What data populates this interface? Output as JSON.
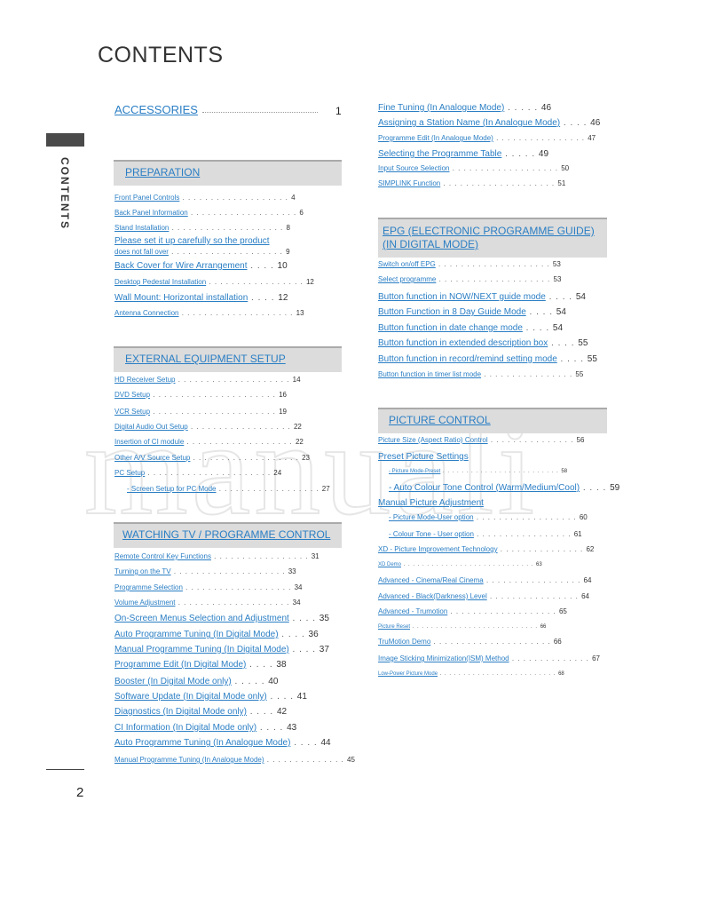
{
  "title": "CONTENTS",
  "side_label": "CONTENTS",
  "page_number": "2",
  "watermark": "manuali",
  "accessories": {
    "label": "ACCESSORIES",
    "page": "1"
  },
  "sections": [
    {
      "title": "PREPARATION",
      "items": [
        {
          "text": "Front Panel Controls",
          "page": "4"
        },
        {
          "text": "Back Panel Information",
          "page": "6"
        },
        {
          "text": "Stand Installation",
          "page": "8"
        },
        {
          "text": "Please set it up carefully so the product",
          "page": ""
        },
        {
          "text": "does not fall over",
          "page": "9"
        },
        {
          "text": "Back Cover for Wire Arrangement",
          "page": "10"
        },
        {
          "text": "Desktop Pedestal Installation",
          "page": "12"
        },
        {
          "text": "Wall Mount: Horizontal installation",
          "page": "12"
        },
        {
          "text": "Antenna Connection",
          "page": "13"
        }
      ]
    },
    {
      "title": "EXTERNAL EQUIPMENT SETUP",
      "items": [
        {
          "text": "HD Receiver Setup",
          "page": "14"
        },
        {
          "text": "DVD Setup",
          "page": "16"
        },
        {
          "text": "VCR Setup",
          "page": "19"
        },
        {
          "text": "Digital Audio Out Setup",
          "page": "22"
        },
        {
          "text": "Insertion of CI module",
          "page": "22"
        },
        {
          "text": "Other A/V Source Setup",
          "page": "23"
        },
        {
          "text": "PC Setup",
          "page": "24"
        },
        {
          "text": "- Screen Setup for PC Mode",
          "page": "27"
        }
      ]
    },
    {
      "title": "WATCHING TV / PROGRAMME CONTROL",
      "items": [
        {
          "text": "Remote Control Key Functions",
          "page": "31"
        },
        {
          "text": "Turning on the TV",
          "page": "33"
        },
        {
          "text": "Programme Selection",
          "page": "34"
        },
        {
          "text": "Volume Adjustment",
          "page": "34"
        },
        {
          "text": "On-Screen Menus Selection and Adjustment",
          "page": "35"
        },
        {
          "text": "Auto Programme Tuning (In Digital Mode)",
          "page": "36"
        },
        {
          "text": "Manual Programme Tuning (In Digital Mode)",
          "page": "37"
        },
        {
          "text": "Programme Edit (In Digital Mode)",
          "page": "38"
        },
        {
          "text": "Booster (In Digital Mode only)",
          "page": "40"
        },
        {
          "text": "Software Update (In Digital Mode only)",
          "page": "41"
        },
        {
          "text": "Diagnostics (In Digital Mode only)",
          "page": "42"
        },
        {
          "text": "CI Information (In Digital Mode only)",
          "page": "43"
        },
        {
          "text": "Auto Programme Tuning (In Analogue Mode)",
          "page": "44"
        },
        {
          "text": "Manual Programme Tuning (In Analogue Mode)",
          "page": "45"
        }
      ]
    },
    {
      "title": "",
      "items": [
        {
          "text": "Fine Tuning (In Analogue Mode)",
          "page": "46"
        },
        {
          "text": "Assigning a Station Name (In Analogue Mode)",
          "page": "46"
        },
        {
          "text": "Programme Edit (In Analogue Mode)",
          "page": "47"
        },
        {
          "text": "Selecting the Programme Table",
          "page": "49"
        },
        {
          "text": "Input Source Selection",
          "page": "50"
        },
        {
          "text": "SIMPLINK Function",
          "page": "51"
        }
      ]
    },
    {
      "title": "EPG (ELECTRONIC PROGRAMME GUIDE)",
      "title2": "(IN DIGITAL MODE)",
      "items": [
        {
          "text": "Switch on/off EPG",
          "page": "53"
        },
        {
          "text": "Select programme",
          "page": "53"
        },
        {
          "text": "Button function in NOW/NEXT guide mode",
          "page": "54"
        },
        {
          "text": "Button Function in 8 Day Guide Mode",
          "page": "54"
        },
        {
          "text": "Button function in date change mode",
          "page": "54"
        },
        {
          "text": "Button function in extended description box",
          "page": "55"
        },
        {
          "text": "Button function in record/remind setting mode",
          "page": "55"
        },
        {
          "text": "Button function in timer list mode",
          "page": "55"
        }
      ]
    },
    {
      "title": "PICTURE CONTROL",
      "items": [
        {
          "text": "Picture Size (Aspect Ratio) Control",
          "page": "56"
        },
        {
          "text": "Preset Picture Settings",
          "page": ""
        },
        {
          "text": "- Picture Mode-Preset",
          "page": "58"
        },
        {
          "text": "- Auto Colour Tone Control (Warm/Medium/Cool)",
          "page": "59"
        },
        {
          "text": "Manual Picture Adjustment",
          "page": ""
        },
        {
          "text": "- Picture Mode-User option",
          "page": "60"
        },
        {
          "text": "- Colour Tone - User option",
          "page": "61"
        },
        {
          "text": "XD - Picture Improvement Technology",
          "page": "62"
        },
        {
          "text": "XD Demo",
          "page": "63"
        },
        {
          "text": "Advanced - Cinema/Real Cinema",
          "page": "64"
        },
        {
          "text": "Advanced - Black(Darkness) Level",
          "page": "64"
        },
        {
          "text": "Advanced - Trumotion",
          "page": "65"
        },
        {
          "text": "Picture Reset",
          "page": "66"
        },
        {
          "text": "TruMotion Demo",
          "page": "66"
        },
        {
          "text": "Image Sticking Minimization(ISM) Method",
          "page": "67"
        },
        {
          "text": "Low-Power Picture Mode",
          "page": "68"
        }
      ]
    }
  ]
}
